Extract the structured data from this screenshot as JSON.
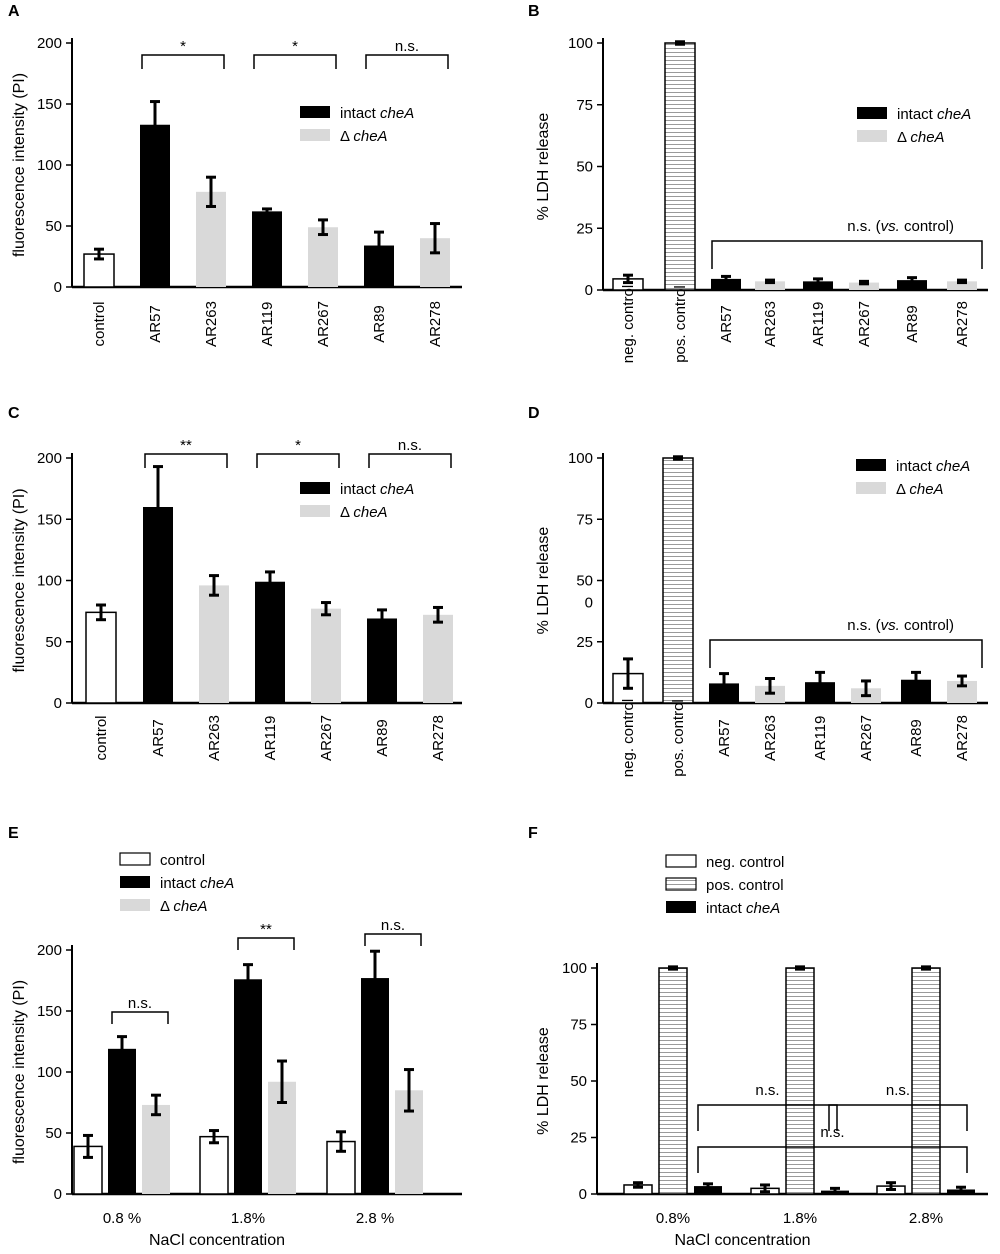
{
  "colors": {
    "intact": "#000000",
    "deleted": "#d9d9d9",
    "control": "#ffffff",
    "axis": "#000000"
  },
  "chart_data": [
    {
      "panel": "A",
      "type": "bar",
      "ylabel": "fluorescence intensity (PI)",
      "ylim": [
        0,
        200
      ],
      "yticks": [
        0,
        50,
        100,
        150,
        200
      ],
      "categories": [
        "control",
        "AR57",
        "AR263",
        "AR119",
        "AR267",
        "AR89",
        "AR278"
      ],
      "bars": [
        {
          "category": "control",
          "group": "control",
          "value": 27,
          "error": 4
        },
        {
          "category": "AR57",
          "group": "intact",
          "value": 133,
          "error": 19
        },
        {
          "category": "AR263",
          "group": "deleted",
          "value": 78,
          "error": 12
        },
        {
          "category": "AR119",
          "group": "intact",
          "value": 62,
          "error": 2
        },
        {
          "category": "AR267",
          "group": "deleted",
          "value": 49,
          "error": 6
        },
        {
          "category": "AR89",
          "group": "intact",
          "value": 34,
          "error": 11
        },
        {
          "category": "AR278",
          "group": "deleted",
          "value": 40,
          "error": 12
        }
      ],
      "legend": [
        {
          "group": "intact",
          "label": "intact ",
          "label_italic": "cheA"
        },
        {
          "group": "deleted",
          "label": "Δ ",
          "label_italic": "cheA"
        }
      ],
      "significance": [
        {
          "from": 1,
          "to": 2,
          "label": "*"
        },
        {
          "from": 3,
          "to": 4,
          "label": "*"
        },
        {
          "from": 5,
          "to": 6,
          "label": "n.s."
        }
      ]
    },
    {
      "panel": "B",
      "type": "bar",
      "ylabel": "% LDH release",
      "ylim": [
        0,
        100
      ],
      "yticks": [
        0,
        25,
        50,
        75,
        100
      ],
      "categories": [
        "neg. control",
        "pos. control",
        "AR57",
        "AR263",
        "AR119",
        "AR267",
        "AR89",
        "AR278"
      ],
      "bars": [
        {
          "category": "neg. control",
          "group": "control",
          "value": 4.5,
          "error": 1.5
        },
        {
          "category": "pos. control",
          "group": "pos",
          "value": 100,
          "error": 0.5
        },
        {
          "category": "AR57",
          "group": "intact",
          "value": 4.5,
          "error": 1
        },
        {
          "category": "AR263",
          "group": "deleted",
          "value": 3.5,
          "error": 0.5
        },
        {
          "category": "AR119",
          "group": "intact",
          "value": 3.5,
          "error": 1
        },
        {
          "category": "AR267",
          "group": "deleted",
          "value": 3,
          "error": 0.5
        },
        {
          "category": "AR89",
          "group": "intact",
          "value": 4,
          "error": 1
        },
        {
          "category": "AR278",
          "group": "deleted",
          "value": 3.5,
          "error": 0.5
        }
      ],
      "legend": [
        {
          "group": "intact",
          "label": "intact ",
          "label_italic": "cheA"
        },
        {
          "group": "deleted",
          "label": "Δ ",
          "label_italic": "cheA"
        }
      ],
      "bracket": {
        "from": 2,
        "to": 7,
        "label_pre": "n.s. (",
        "label_italic": "vs.",
        "label_post": " control)"
      }
    },
    {
      "panel": "C",
      "type": "bar",
      "ylabel": "fluorescence intensity (PI)",
      "ylim": [
        0,
        200
      ],
      "yticks": [
        0,
        50,
        100,
        150,
        200
      ],
      "categories": [
        "control",
        "AR57",
        "AR263",
        "AR119",
        "AR267",
        "AR89",
        "AR278"
      ],
      "bars": [
        {
          "category": "control",
          "group": "control",
          "value": 74,
          "error": 6
        },
        {
          "category": "AR57",
          "group": "intact",
          "value": 160,
          "error": 33
        },
        {
          "category": "AR263",
          "group": "deleted",
          "value": 96,
          "error": 8
        },
        {
          "category": "AR119",
          "group": "intact",
          "value": 99,
          "error": 8
        },
        {
          "category": "AR267",
          "group": "deleted",
          "value": 77,
          "error": 5
        },
        {
          "category": "AR89",
          "group": "intact",
          "value": 69,
          "error": 7
        },
        {
          "category": "AR278",
          "group": "deleted",
          "value": 72,
          "error": 6
        }
      ],
      "legend": [
        {
          "group": "intact",
          "label": "intact ",
          "label_italic": "cheA"
        },
        {
          "group": "deleted",
          "label": "Δ ",
          "label_italic": "cheA"
        }
      ],
      "significance": [
        {
          "from": 1,
          "to": 2,
          "label": "**"
        },
        {
          "from": 3,
          "to": 4,
          "label": "*"
        },
        {
          "from": 5,
          "to": 6,
          "label": "n.s."
        }
      ]
    },
    {
      "panel": "D",
      "type": "bar",
      "ylabel": "% LDH release",
      "ylim": [
        0,
        100
      ],
      "yticks": [
        0,
        25,
        50,
        75,
        100
      ],
      "extra_tick_label": "0",
      "categories": [
        "neg. control",
        "pos. control",
        "AR57",
        "AR263",
        "AR119",
        "AR267",
        "AR89",
        "AR278"
      ],
      "bars": [
        {
          "category": "neg. control",
          "group": "control",
          "value": 12,
          "error": 6
        },
        {
          "category": "pos. control",
          "group": "pos",
          "value": 100,
          "error": 0.5
        },
        {
          "category": "AR57",
          "group": "intact",
          "value": 8,
          "error": 4
        },
        {
          "category": "AR263",
          "group": "deleted",
          "value": 7,
          "error": 3
        },
        {
          "category": "AR119",
          "group": "intact",
          "value": 8.5,
          "error": 4
        },
        {
          "category": "AR267",
          "group": "deleted",
          "value": 6,
          "error": 3
        },
        {
          "category": "AR89",
          "group": "intact",
          "value": 9.5,
          "error": 3
        },
        {
          "category": "AR278",
          "group": "deleted",
          "value": 9,
          "error": 2
        }
      ],
      "legend": [
        {
          "group": "intact",
          "label": "intact ",
          "label_italic": "cheA"
        },
        {
          "group": "deleted",
          "label": "Δ ",
          "label_italic": "cheA"
        }
      ],
      "bracket": {
        "from": 2,
        "to": 7,
        "label_pre": "n.s. (",
        "label_italic": "vs.",
        "label_post": " control)"
      }
    },
    {
      "panel": "E",
      "type": "grouped-bar",
      "ylabel": "fluorescence intensity (PI)",
      "xlabel": "NaCl concentration",
      "ylim": [
        0,
        200
      ],
      "yticks": [
        0,
        50,
        100,
        150,
        200
      ],
      "groups": [
        "0.8 %",
        "1.8%",
        "2.8 %"
      ],
      "series": [
        {
          "name": "control",
          "group": "control",
          "values": [
            39,
            47,
            43
          ],
          "errors": [
            9,
            5,
            8
          ]
        },
        {
          "name": "intact cheA",
          "group": "intact",
          "values": [
            119,
            176,
            177
          ],
          "errors": [
            10,
            12,
            22
          ]
        },
        {
          "name": "Δ cheA",
          "group": "deleted",
          "values": [
            73,
            92,
            85
          ],
          "errors": [
            8,
            17,
            17
          ]
        }
      ],
      "legend": [
        {
          "group": "control",
          "label": "control",
          "label_italic": ""
        },
        {
          "group": "intact",
          "label": " intact ",
          "label_italic": "cheA"
        },
        {
          "group": "deleted",
          "label": " Δ ",
          "label_italic": "cheA"
        }
      ],
      "significance": [
        {
          "group": 0,
          "label": "n.s."
        },
        {
          "group": 1,
          "label": "**"
        },
        {
          "group": 2,
          "label": "n.s."
        }
      ]
    },
    {
      "panel": "F",
      "type": "grouped-bar",
      "ylabel": "% LDH release",
      "xlabel": "NaCl concentration",
      "ylim": [
        0,
        100
      ],
      "yticks": [
        0,
        25,
        50,
        75,
        100
      ],
      "groups": [
        "0.8%",
        "1.8%",
        "2.8%"
      ],
      "series": [
        {
          "name": "neg. control",
          "group": "control",
          "values": [
            4,
            2.5,
            3.5
          ],
          "errors": [
            1,
            1.5,
            1.5
          ]
        },
        {
          "name": "pos. control",
          "group": "pos",
          "values": [
            100,
            100,
            100
          ],
          "errors": [
            0.5,
            0.5,
            0.5
          ]
        },
        {
          "name": "intact cheA",
          "group": "intact",
          "values": [
            3.5,
            1.5,
            2
          ],
          "errors": [
            1,
            1,
            1
          ]
        }
      ],
      "legend": [
        {
          "group": "control",
          "label": "neg. control",
          "label_italic": ""
        },
        {
          "group": "pos",
          "label": "pos. control",
          "label_italic": ""
        },
        {
          "group": "intact",
          "label": " intact ",
          "label_italic": "cheA"
        }
      ],
      "brackets": [
        {
          "from_group": 0,
          "to_group": 1,
          "level": 2,
          "label": "n.s."
        },
        {
          "from_group": 1,
          "to_group": 2,
          "level": 2,
          "label": "n.s."
        },
        {
          "from_group": 0,
          "to_group": 2,
          "level": 1,
          "label": "n.s."
        }
      ]
    }
  ]
}
